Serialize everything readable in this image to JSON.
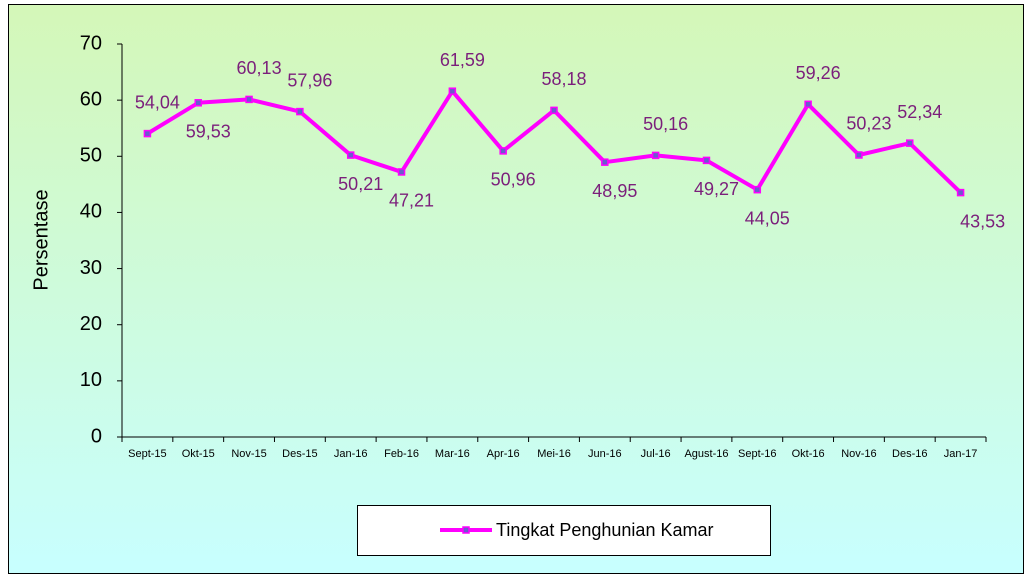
{
  "chart_data": {
    "type": "line",
    "y_label": "Persentase",
    "categories": [
      "Sept-15",
      "Okt-15",
      "Nov-15",
      "Des-15",
      "Jan-16",
      "Feb-16",
      "Mar-16",
      "Apr-16",
      "Mei-16",
      "Jun-16",
      "Jul-16",
      "Agust-16",
      "Sept-16",
      "Okt-16",
      "Nov-16",
      "Des-16",
      "Jan-17"
    ],
    "series": [
      {
        "name": "Tingkat Penghunian Kamar",
        "color": "#ff00ff",
        "marker_color": "#6a5acd",
        "values": [
          54.04,
          59.53,
          60.13,
          57.96,
          50.21,
          47.21,
          61.59,
          50.96,
          58.18,
          48.95,
          50.16,
          49.27,
          44.05,
          59.26,
          50.23,
          52.34,
          43.53
        ],
        "value_labels": [
          "54,04",
          "59,53",
          "60,13",
          "57,96",
          "50,21",
          "47,21",
          "61,59",
          "50,96",
          "58,18",
          "48,95",
          "50,16",
          "49,27",
          "44,05",
          "59,26",
          "50,23",
          "52,34",
          "43,53"
        ]
      }
    ],
    "ylim": [
      0,
      70
    ],
    "yticks": [
      0,
      10,
      20,
      30,
      40,
      50,
      60,
      70
    ],
    "legend": "bottom"
  }
}
